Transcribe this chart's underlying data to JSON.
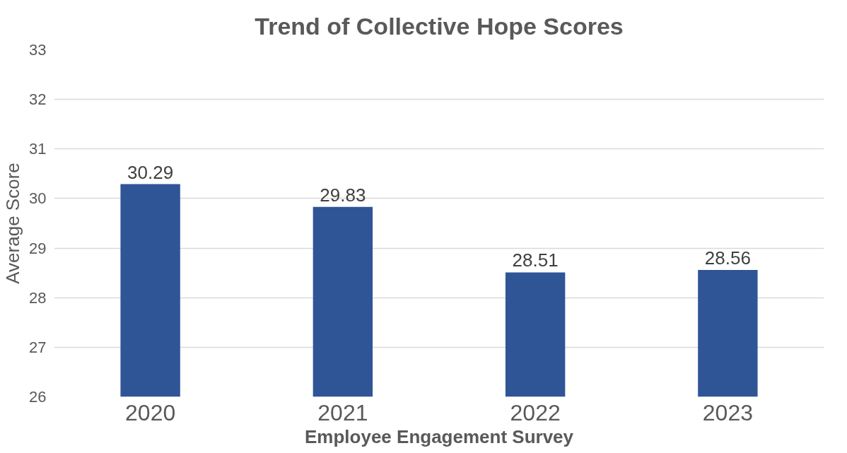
{
  "chart_data": {
    "type": "bar",
    "title": "Trend of Collective Hope Scores",
    "xlabel": "Employee Engagement Survey",
    "ylabel": "Average Score",
    "categories": [
      "2020",
      "2021",
      "2022",
      "2023"
    ],
    "values": [
      30.29,
      29.83,
      28.51,
      28.56
    ],
    "color": "#2f5597",
    "ylim": [
      26,
      33
    ],
    "yticks": [
      26,
      27,
      28,
      29,
      30,
      31,
      32,
      33
    ],
    "grid": "y",
    "data_labels": true
  }
}
